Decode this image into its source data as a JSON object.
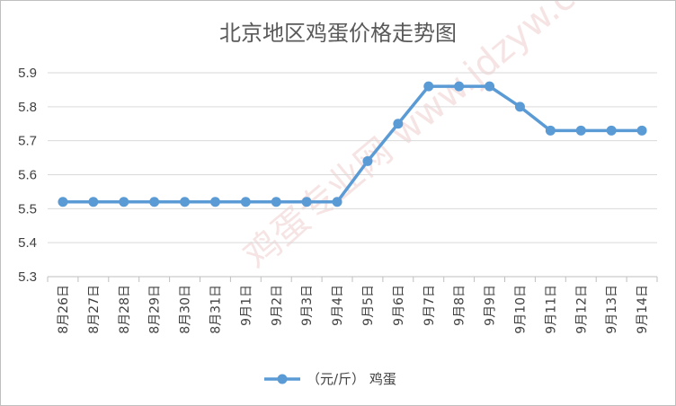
{
  "chart_data": {
    "type": "line",
    "title": "北京地区鸡蛋价格走势图",
    "categories": [
      "8月26日",
      "8月27日",
      "8月28日",
      "8月29日",
      "8月30日",
      "8月31日",
      "9月1日",
      "9月2日",
      "9月3日",
      "9月4日",
      "9月5日",
      "9月6日",
      "9月7日",
      "9月8日",
      "9月9日",
      "9月10日",
      "9月11日",
      "9月12日",
      "9月13日",
      "9月14日"
    ],
    "series": [
      {
        "name": "（元/斤） 鸡蛋",
        "color": "#5b9bd5",
        "values": [
          5.52,
          5.52,
          5.52,
          5.52,
          5.52,
          5.52,
          5.52,
          5.52,
          5.52,
          5.52,
          5.64,
          5.75,
          5.86,
          5.86,
          5.86,
          5.8,
          5.73,
          5.73,
          5.73,
          5.73
        ]
      }
    ],
    "ylim": [
      5.3,
      5.9
    ],
    "yticks": [
      "5.3",
      "5.4",
      "5.5",
      "5.6",
      "5.7",
      "5.8",
      "5.9"
    ],
    "grid": true,
    "legend_position": "bottom",
    "watermark": "鸡蛋专业网 www.jdzyw.com"
  }
}
